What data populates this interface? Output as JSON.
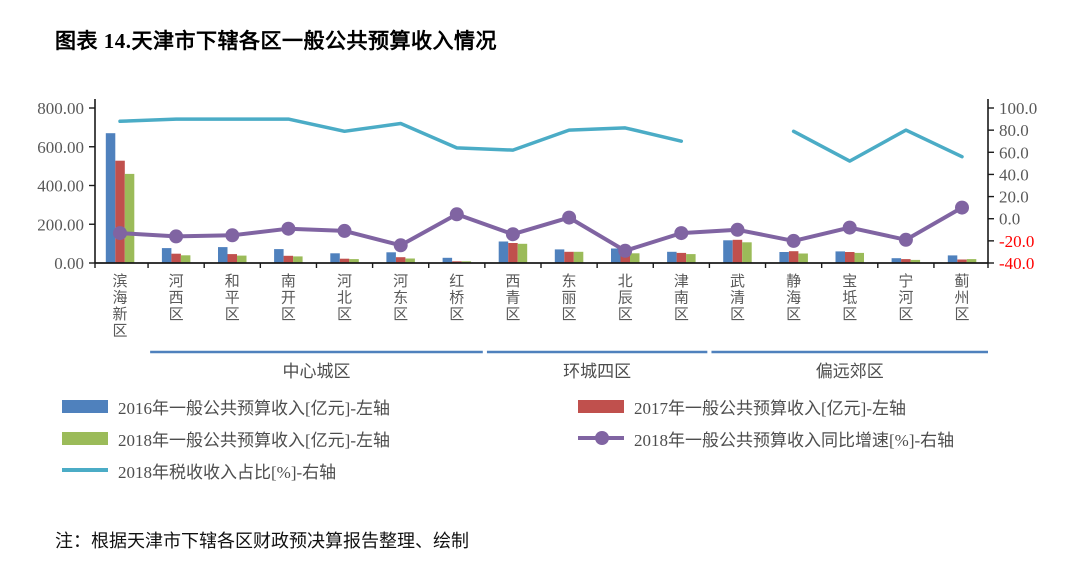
{
  "title": "图表 14.天津市下辖各区一般公共预算收入情况",
  "note": "注：根据天津市下辖各区财政预决算报告整理、绘制",
  "colors": {
    "bar_2016": "#4f81bd",
    "bar_2017": "#c0504d",
    "bar_2018": "#9bbb59",
    "growth_line": "#8064a2",
    "tax_line": "#4bacc6",
    "group_underline": "#4f81bd",
    "axis_text": "#595959",
    "axis_negative_text": "#ff0000",
    "axis_line": "#1a1a1a"
  },
  "chart_data": {
    "type": "combo-bar-line",
    "categories": [
      "滨海新区",
      "河西区",
      "和平区",
      "南开区",
      "河北区",
      "河东区",
      "红桥区",
      "西青区",
      "东丽区",
      "北辰区",
      "津南区",
      "武清区",
      "静海区",
      "宝坻区",
      "宁河区",
      "蓟州区"
    ],
    "groups": [
      {
        "label": "中心城区",
        "from": 1,
        "to": 6
      },
      {
        "label": "环城四区",
        "from": 7,
        "to": 10
      },
      {
        "label": "偏远郊区",
        "from": 11,
        "to": 15
      }
    ],
    "series": [
      {
        "name": "2016年一般公共预算收入[亿元]-左轴",
        "type": "bar",
        "axis": "left",
        "color": "#4f81bd",
        "values": [
          670,
          77,
          82,
          72,
          50,
          55,
          27,
          111,
          70,
          75,
          58,
          117,
          57,
          60,
          25,
          39
        ]
      },
      {
        "name": "2017年一般公共预算收入[亿元]-左轴",
        "type": "bar",
        "axis": "left",
        "color": "#c0504d",
        "values": [
          528,
          48,
          46,
          37,
          22,
          30,
          9,
          103,
          58,
          70,
          52,
          120,
          61,
          57,
          20,
          18
        ]
      },
      {
        "name": "2018年一般公共预算收入[亿元]-左轴",
        "type": "bar",
        "axis": "left",
        "color": "#9bbb59",
        "values": [
          460,
          40,
          38,
          34,
          20,
          23,
          9,
          99,
          58,
          50,
          46,
          107,
          49,
          52,
          16,
          20
        ]
      },
      {
        "name": "2018年一般公共预算收入同比增速[%]-右轴",
        "type": "line-marker",
        "axis": "right",
        "color": "#8064a2",
        "values": [
          -13,
          -16,
          -15,
          -9,
          -11,
          -24,
          4,
          -14,
          1,
          -29,
          -13,
          -10,
          -20,
          -8,
          -19,
          10
        ]
      },
      {
        "name": "2018年税收收入占比[%]-右轴",
        "type": "line",
        "axis": "right",
        "color": "#4bacc6",
        "values": [
          88,
          90,
          90,
          90,
          79,
          86,
          64,
          62,
          80,
          82,
          70,
          null,
          79,
          52,
          80,
          56
        ]
      }
    ],
    "left_axis": {
      "min": 0,
      "max": 800,
      "tick_labels": [
        "800.00",
        "600.00",
        "400.00",
        "200.00",
        "0.00"
      ]
    },
    "right_axis": {
      "min": -40,
      "max": 100,
      "tick_labels": [
        "100.0",
        "80.0",
        "60.0",
        "40.0",
        "20.0",
        "0.0",
        "-20.0",
        "-40.0"
      ]
    },
    "grid": false,
    "legend_position": "bottom"
  },
  "legend": {
    "items": [
      {
        "label": "2016年一般公共预算收入[亿元]-左轴",
        "swatch": "bar",
        "color": "#4f81bd",
        "col": 0,
        "row": 0
      },
      {
        "label": "2017年一般公共预算收入[亿元]-左轴",
        "swatch": "bar",
        "color": "#c0504d",
        "col": 1,
        "row": 0
      },
      {
        "label": "2018年一般公共预算收入[亿元]-左轴",
        "swatch": "bar",
        "color": "#9bbb59",
        "col": 0,
        "row": 1
      },
      {
        "label": "2018年一般公共预算收入同比增速[%]-右轴",
        "swatch": "line-marker",
        "color": "#8064a2",
        "col": 1,
        "row": 1
      },
      {
        "label": "2018年税收收入占比[%]-右轴",
        "swatch": "line",
        "color": "#4bacc6",
        "col": 0,
        "row": 2
      }
    ]
  }
}
